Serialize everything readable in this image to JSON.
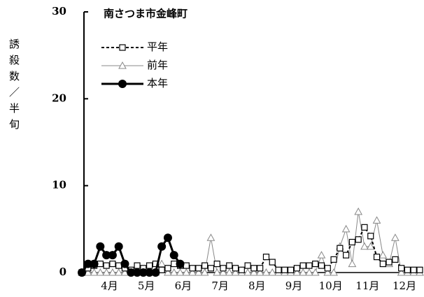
{
  "chart_data": {
    "type": "line",
    "title": "南さつま市金峰町",
    "ylabel": "誘殺数／半旬",
    "categories": [
      null,
      null,
      null,
      null,
      "4月",
      null,
      null,
      null,
      null,
      null,
      "5月",
      null,
      null,
      null,
      null,
      null,
      "6月",
      null,
      null,
      null,
      null,
      null,
      "7月",
      null,
      null,
      null,
      null,
      null,
      "8月",
      null,
      null,
      null,
      null,
      null,
      "9月",
      null,
      null,
      null,
      null,
      null,
      "10月",
      null,
      null,
      null,
      null,
      null,
      "11月",
      null,
      null,
      null,
      null,
      null,
      "12月",
      null,
      null,
      null
    ],
    "ylim": [
      0,
      30
    ],
    "yticks": [
      0,
      10,
      20,
      30
    ],
    "series": [
      {
        "name": "平年",
        "color": "#000000",
        "marker": "square",
        "dash": true,
        "values": [
          0,
          0.5,
          0.8,
          1,
          0.8,
          1,
          0.8,
          0.5,
          0.3,
          0.8,
          0.5,
          0.8,
          1,
          0.3,
          0.5,
          1,
          0.8,
          0.8,
          0.5,
          0.5,
          0.8,
          0.5,
          1,
          0.5,
          0.8,
          0.5,
          0.3,
          0.8,
          0.5,
          0.5,
          1.8,
          1.2,
          0.3,
          0.3,
          0.3,
          0.5,
          0.8,
          0.8,
          1,
          0.8,
          0.5,
          1.5,
          2.8,
          2,
          3.5,
          3.8,
          5.2,
          4.2,
          1.8,
          1,
          1.2,
          1.5,
          0.5,
          0.3,
          0.3,
          0.3
        ]
      },
      {
        "name": "前年",
        "color": "#888888",
        "marker": "triangle",
        "dash": false,
        "values": [
          0,
          0,
          0,
          0,
          0,
          0,
          0,
          0,
          0,
          0,
          0,
          0,
          0,
          1,
          0,
          0,
          0,
          0,
          0,
          0,
          0,
          4,
          0,
          0,
          0,
          0,
          0,
          0,
          0,
          0,
          0,
          0,
          0,
          0,
          0,
          0,
          0,
          0,
          0,
          2,
          0,
          0,
          3,
          5,
          1,
          7,
          3,
          3,
          6,
          2,
          1,
          4,
          0,
          0,
          0,
          0
        ]
      },
      {
        "name": "本年",
        "color": "#000000",
        "marker": "circle",
        "dash": false,
        "values": [
          0,
          1,
          1,
          3,
          2,
          2,
          3,
          1,
          0,
          0,
          0,
          0,
          0,
          3,
          4,
          2,
          1,
          null,
          null,
          null,
          null,
          null,
          null,
          null,
          null,
          null,
          null,
          null,
          null,
          null,
          null,
          null,
          null,
          null,
          null,
          null,
          null,
          null,
          null,
          null,
          null,
          null,
          null,
          null,
          null,
          null,
          null,
          null,
          null,
          null,
          null,
          null,
          null,
          null,
          null,
          null
        ]
      }
    ]
  }
}
